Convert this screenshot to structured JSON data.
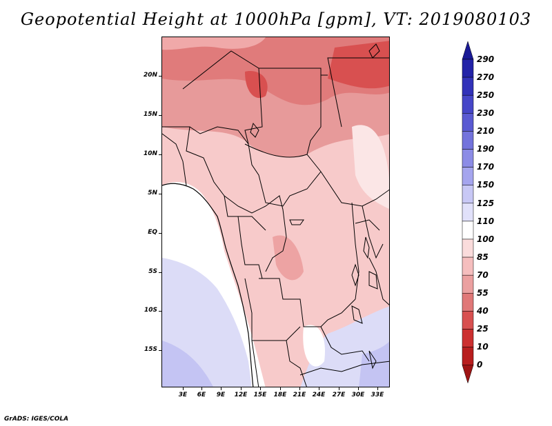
{
  "title": "Geopotential Height at 1000hPa [gpm], VT: 2019080103",
  "credit": "GrADS: IGES/COLA",
  "lat_labels": [
    "20N",
    "15N",
    "10N",
    "5N",
    "EQ",
    "5S",
    "10S",
    "15S"
  ],
  "lon_labels": [
    "3E",
    "6E",
    "9E",
    "12E",
    "15E",
    "18E",
    "21E",
    "24E",
    "27E",
    "30E",
    "33E"
  ],
  "colorbar": {
    "labels": [
      "290",
      "270",
      "250",
      "230",
      "210",
      "190",
      "170",
      "150",
      "125",
      "110",
      "100",
      "85",
      "70",
      "55",
      "40",
      "25",
      "10",
      "0"
    ],
    "colors": [
      "#1a1a96",
      "#2323a8",
      "#3232b9",
      "#4646c8",
      "#5a5ad2",
      "#7373dc",
      "#8c8ce6",
      "#a5a5ee",
      "#c8c8f5",
      "#e1e1fa",
      "#ffffff",
      "#fadcdc",
      "#f5bebe",
      "#eba0a0",
      "#e07878",
      "#d85050",
      "#cc3030",
      "#b81e1e",
      "#9e1414"
    ]
  },
  "map_data": {
    "region": "Central Africa",
    "lon_range": [
      0,
      35
    ],
    "lat_range": [
      -20,
      24
    ],
    "variable": "Geopotential Height",
    "level": "1000hPa",
    "units": "gpm",
    "valid_time": "2019080103"
  }
}
